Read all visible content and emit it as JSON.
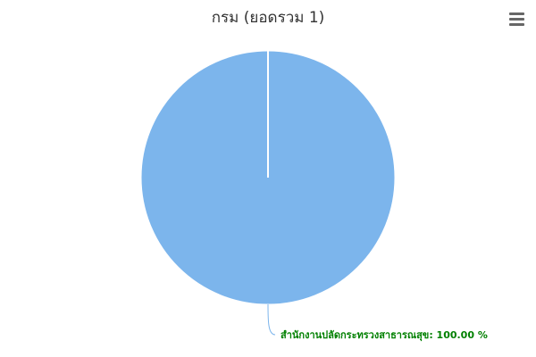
{
  "chart_data": {
    "type": "pie",
    "title": "กรม (ยอดรวม 1)",
    "slices": [
      {
        "name": "สำนักงานปลัดกระทรวงสาธารณสุข",
        "value": 1,
        "percent_label": "สำนักงานปลัดกระทรวงสาธารณสุข: 100.00 %",
        "color": "#7cb5ec"
      }
    ],
    "label_color": "#008000",
    "connector_color": "#7cb5ec"
  },
  "toolbar": {
    "menu_icon": "hamburger-menu-icon"
  }
}
